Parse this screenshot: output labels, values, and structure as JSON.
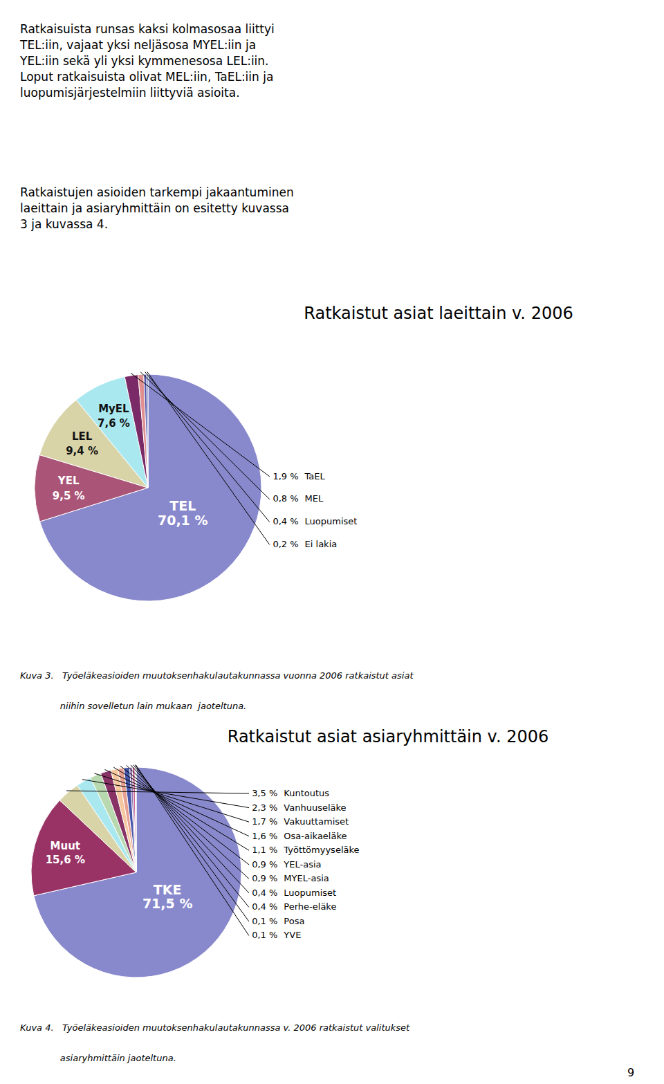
{
  "paragraphs": [
    "Ratkaisuista runsas kaksi kolmasosaa liittyi\nTEL:iin, vajaat yksi neljäsosa MYEL:iin ja\nYEL:iin sekä yli yksi kymmenesosa LEL:iin.\nLoput ratkaisuista olivat MEL:iin, TaEL:iin ja\nluopumisjärjestelmiin liittyviä asioita.",
    "Ratkaistujen asioiden tarkempi jakaantuminen\nlaeittain ja asiaryhmittäin on esitetty kuvassa\n3 ja kuvassa 4."
  ],
  "page_number": "9",
  "chart_data": [
    {
      "type": "pie",
      "title": "Ratkaistut asiat laeittain v. 2006",
      "categories": [
        "TEL",
        "YEL",
        "LEL",
        "MyEL",
        "TaEL",
        "MEL",
        "Luopumiset",
        "Ei lakia"
      ],
      "values": [
        70.1,
        9.5,
        9.4,
        7.6,
        1.9,
        0.8,
        0.4,
        0.2
      ],
      "value_labels": [
        "70,1 %",
        "9,5 %",
        "9,4 %",
        "7,6 %",
        "1,9 %",
        "0,8 %",
        "0,4 %",
        "0,2 %"
      ],
      "colors": [
        "#8888cc",
        "#aa5577",
        "#d8d4a8",
        "#aae8f0",
        "#7a2a66",
        "#e09090",
        "#5555aa",
        "#3355aa"
      ],
      "data_labels": true,
      "caption": [
        "Kuva 3.   Työeläkeasioiden muutoksenhakulautakunnassa vuonna 2006 ratkaistut asiat",
        "              niihin sovelletun lain mukaan  jaoteltuna."
      ]
    },
    {
      "type": "pie",
      "title": "Ratkaistut asiat asiaryhmittäin v. 2006",
      "categories": [
        "TKE",
        "Muut",
        "Kuntoutus",
        "Vanhuuseläke",
        "Vakuuttamiset",
        "Osa-aikaeläke",
        "Työttömyyseläke",
        "YEL-asia",
        "MYEL-asia",
        "Luopumiset",
        "Perhe-eläke",
        "Posa",
        "YVE"
      ],
      "values": [
        71.5,
        15.6,
        3.5,
        2.3,
        1.7,
        1.6,
        1.1,
        0.9,
        0.9,
        0.4,
        0.4,
        0.1,
        0.1
      ],
      "value_labels": [
        "71,5 %",
        "15,6 %",
        "3,5 %",
        "2,3 %",
        "1,7 %",
        "1,6 %",
        "1,1 %",
        "0,9 %",
        "0,9 %",
        "0,4 %",
        "0,4 %",
        "0,1 %",
        "0,1 %"
      ],
      "colors": [
        "#8888cc",
        "#993366",
        "#d8d4a8",
        "#aae8f0",
        "#b8d8b0",
        "#883366",
        "#f5c8a0",
        "#e8a090",
        "#4455aa",
        "#9070b0",
        "#cc6699",
        "#44aa66",
        "#ccaa55"
      ],
      "data_labels": true,
      "caption": [
        "Kuva 4.   Työeläkeasioiden muutoksenhakulautakunnassa v. 2006 ratkaistut valitukset",
        "              asiaryhmittäin jaoteltuna."
      ]
    }
  ]
}
